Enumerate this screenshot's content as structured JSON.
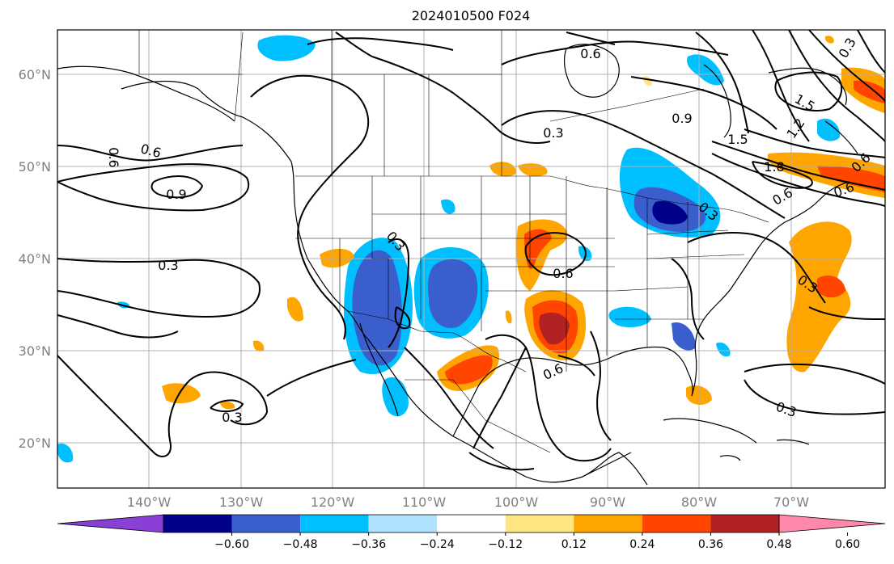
{
  "title": "2024010500 F024",
  "lat_labels": [
    "60°N",
    "50°N",
    "40°N",
    "30°N",
    "20°N"
  ],
  "lon_labels": [
    "140°W",
    "130°W",
    "120°W",
    "110°W",
    "100°W",
    "90°W",
    "80°W",
    "70°W"
  ],
  "colorbar": {
    "ticks": [
      "−0.60",
      "−0.48",
      "−0.36",
      "−0.24",
      "−0.12",
      "0.12",
      "0.24",
      "0.36",
      "0.48",
      "0.60"
    ],
    "colors": [
      "#8a3fd6",
      "#00008b",
      "#3a5fcd",
      "#00bfff",
      "#b0e2ff",
      "#ffffff",
      "#ffe680",
      "#ffa500",
      "#ff4500",
      "#b22222",
      "#ff88aa"
    ]
  },
  "contour_labels": [
    "0.6",
    "0.9",
    "0.3",
    "0.6",
    "0.3",
    "0.6",
    "0.9",
    "0.3",
    "1.5",
    "1.2",
    "1.5",
    "1.8",
    "0.6",
    "0.3",
    "0.3",
    "0.6",
    "0.6",
    "0.3",
    "0.3",
    "0.3",
    "0.6",
    "0.6"
  ]
}
